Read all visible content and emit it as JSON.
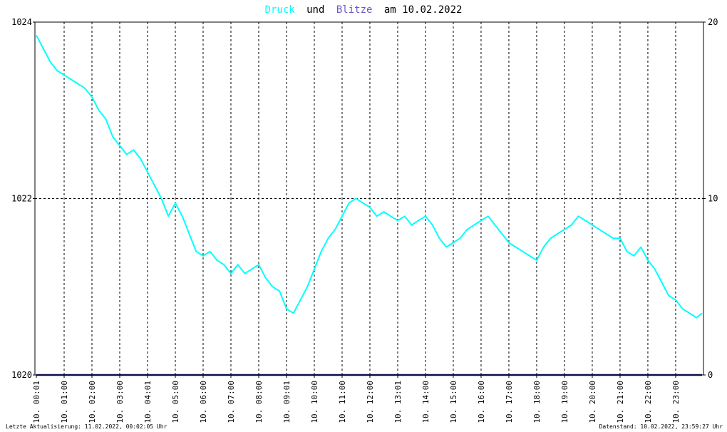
{
  "title": {
    "part1": "Druck",
    "part2": "und",
    "part3": "Blitze",
    "part4": "am 10.02.2022",
    "color1": "#00ffff",
    "color2": "#000000",
    "color3": "#6a5acd",
    "color4": "#000000"
  },
  "footer": {
    "left": "Letzte Aktualisierung: 11.02.2022, 00:02:05 Uhr",
    "right": "Datenstand: 10.02.2022, 23:59:27 Uhr"
  },
  "colors": {
    "pressure_line": "#00ffff",
    "lightning_line": "#1a1a80",
    "grid": "#000000",
    "frame": "#000000"
  },
  "chart_data": {
    "type": "line",
    "title": "Druck und Blitze am 10.02.2022",
    "left_axis": {
      "ylim": [
        1020,
        1024
      ],
      "ticks": [
        1020,
        1022,
        1024
      ]
    },
    "right_axis": {
      "ylim": [
        0,
        20
      ],
      "ticks": [
        0,
        10,
        20
      ]
    },
    "x_tick_labels": [
      "10. 00:01",
      "10. 01:00",
      "10. 02:00",
      "10. 03:00",
      "10. 04:01",
      "10. 05:00",
      "10. 06:00",
      "10. 07:00",
      "10. 08:00",
      "10. 09:01",
      "10. 10:00",
      "10. 11:00",
      "10. 12:00",
      "10. 13:01",
      "10. 14:00",
      "10. 15:00",
      "10. 16:00",
      "10. 17:00",
      "10. 18:00",
      "10. 19:00",
      "10. 20:00",
      "10. 21:00",
      "10. 22:00",
      "10. 23:00"
    ],
    "xlim_hours": [
      0,
      23.95
    ],
    "grid": true,
    "series": [
      {
        "name": "Druck",
        "axis": "left",
        "x_hours": [
          0.0,
          0.25,
          0.5,
          0.75,
          1.0,
          1.25,
          1.5,
          1.75,
          2.0,
          2.25,
          2.5,
          2.75,
          3.0,
          3.25,
          3.5,
          3.75,
          4.0,
          4.25,
          4.5,
          4.75,
          5.0,
          5.25,
          5.5,
          5.75,
          6.0,
          6.25,
          6.5,
          6.75,
          7.0,
          7.25,
          7.5,
          7.75,
          8.0,
          8.25,
          8.5,
          8.75,
          9.0,
          9.25,
          9.5,
          9.75,
          10.0,
          10.25,
          10.5,
          10.75,
          11.0,
          11.25,
          11.5,
          11.75,
          12.0,
          12.25,
          12.5,
          12.75,
          13.0,
          13.25,
          13.5,
          13.75,
          14.0,
          14.25,
          14.5,
          14.75,
          15.0,
          15.25,
          15.5,
          15.75,
          16.0,
          16.25,
          16.5,
          16.75,
          17.0,
          17.25,
          17.5,
          17.75,
          18.0,
          18.25,
          18.5,
          18.75,
          19.0,
          19.25,
          19.5,
          19.75,
          20.0,
          20.25,
          20.5,
          20.75,
          21.0,
          21.25,
          21.5,
          21.75,
          22.0,
          22.25,
          22.5,
          22.75,
          23.0,
          23.25,
          23.5,
          23.75,
          23.95
        ],
        "values": [
          1023.85,
          1023.7,
          1023.55,
          1023.45,
          1023.4,
          1023.35,
          1023.3,
          1023.25,
          1023.15,
          1023.0,
          1022.9,
          1022.7,
          1022.6,
          1022.5,
          1022.55,
          1022.45,
          1022.3,
          1022.15,
          1022.0,
          1021.8,
          1021.95,
          1021.8,
          1021.6,
          1021.4,
          1021.35,
          1021.4,
          1021.3,
          1021.25,
          1021.15,
          1021.25,
          1021.15,
          1021.2,
          1021.25,
          1021.1,
          1021.0,
          1020.95,
          1020.75,
          1020.7,
          1020.85,
          1021.0,
          1021.2,
          1021.4,
          1021.55,
          1021.65,
          1021.8,
          1021.95,
          1022.0,
          1021.95,
          1021.9,
          1021.8,
          1021.85,
          1021.8,
          1021.75,
          1021.8,
          1021.7,
          1021.75,
          1021.8,
          1021.7,
          1021.55,
          1021.45,
          1021.5,
          1021.55,
          1021.65,
          1021.7,
          1021.75,
          1021.8,
          1021.7,
          1021.6,
          1021.5,
          1021.45,
          1021.4,
          1021.35,
          1021.3,
          1021.45,
          1021.55,
          1021.6,
          1021.65,
          1021.7,
          1021.8,
          1021.75,
          1021.7,
          1021.65,
          1021.6,
          1021.55,
          1021.55,
          1021.4,
          1021.35,
          1021.45,
          1021.3,
          1021.2,
          1021.05,
          1020.9,
          1020.85,
          1020.75,
          1020.7,
          1020.65,
          1020.7
        ]
      },
      {
        "name": "Blitze",
        "axis": "right",
        "x_hours": [
          0,
          23.95
        ],
        "values": [
          0,
          0
        ]
      }
    ]
  }
}
